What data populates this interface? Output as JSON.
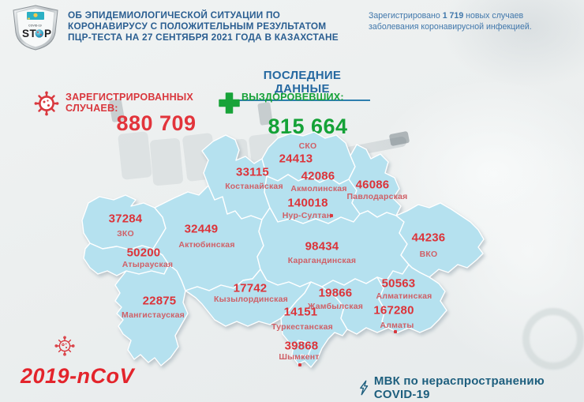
{
  "logo": {
    "shield": "stop-covid-shield",
    "small_text": "COVID-19",
    "stop_left": "ST",
    "stop_right": "P"
  },
  "header": {
    "title_lines": [
      "ОБ ЭПИДЕМИОЛОГИЧЕСКОЙ СИТУАЦИИ ПО",
      "КОРОНАВИРУСУ С ПОЛОЖИТЕЛЬНЫМ РЕЗУЛЬТАТОМ",
      "ПЦР-ТЕСТА НА 27 СЕНТЯБРЯ 2021 ГОДА В КАЗАХСТАНЕ"
    ]
  },
  "new_cases_note": {
    "prefix": "Зарегистрировано",
    "count": "1 719",
    "suffix": "новых случаев",
    "line2": "заболевания коронавирусной инфекцией."
  },
  "latest_data_heading": "ПОСЛЕДНИЕ ДАННЫЕ",
  "stats": {
    "registered_label_line1": "ЗАРЕГИСТРИРОВАННЫХ",
    "registered_label_line2": "СЛУЧАЕВ:",
    "registered_value": "880 709",
    "recovered_label": "ВЫЗДОРОВЕВШИХ:",
    "recovered_value": "815 664"
  },
  "map_regions": [
    {
      "id": "sko",
      "name": "СКО",
      "value": "24413",
      "marker": "none"
    },
    {
      "id": "kostanay",
      "name": "Костанайская",
      "value": "33115",
      "marker": "none"
    },
    {
      "id": "akmola",
      "name": "Акмолинская",
      "value": "42086",
      "marker": "none"
    },
    {
      "id": "pavlodar",
      "name": "Павлодарская",
      "value": "46086",
      "marker": "none"
    },
    {
      "id": "nursultan",
      "name": "Нур-Султан",
      "value": "140018",
      "marker": "right"
    },
    {
      "id": "zko",
      "name": "ЗКО",
      "value": "37284",
      "marker": "none"
    },
    {
      "id": "aktobe",
      "name": "Актюбинская",
      "value": "32449",
      "marker": "none"
    },
    {
      "id": "atyrau",
      "name": "Атырауская",
      "value": "50200",
      "marker": "none"
    },
    {
      "id": "mangystau",
      "name": "Мангистауская",
      "value": "22875",
      "marker": "none"
    },
    {
      "id": "kyzylorda",
      "name": "Кызылординская",
      "value": "17742",
      "marker": "none"
    },
    {
      "id": "karaganda",
      "name": "Карагандинская",
      "value": "98434",
      "marker": "none"
    },
    {
      "id": "vko",
      "name": "ВКО",
      "value": "44236",
      "marker": "none"
    },
    {
      "id": "almaty_region",
      "name": "Алматинская",
      "value": "50563",
      "marker": "none"
    },
    {
      "id": "zhambyl",
      "name": "Жамбылская",
      "value": "19866",
      "marker": "none"
    },
    {
      "id": "turkestan",
      "name": "Туркестанская",
      "value": "14151",
      "marker": "none"
    },
    {
      "id": "almaty_city",
      "name": "Алматы",
      "value": "167280",
      "marker": "below"
    },
    {
      "id": "shymkent",
      "name": "Шымкент",
      "value": "39868",
      "marker": "below"
    }
  ],
  "footer": {
    "virus_label": "2019-nCoV",
    "committee_text": "МВК по нераспространению COVID-19"
  },
  "colors": {
    "header_blue": "#2a5e91",
    "note_blue": "#4077ab",
    "heading_blue": "#2568a0",
    "accent_red": "#dc3339",
    "region_name_red": "#cf6067",
    "accent_green": "#14a237",
    "map_fill": "#b5e1ef",
    "footer_teal": "#1e5f7e",
    "footer_red": "#e3242b"
  }
}
